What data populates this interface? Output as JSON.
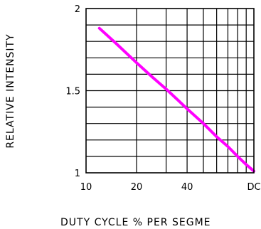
{
  "chart_data": {
    "type": "line",
    "xlabel": "DUTY CYCLE % PER SEGME",
    "ylabel": "RELATIVE INTENSITY",
    "x_scale": "log",
    "x_ticks": [
      {
        "value": 10,
        "label": "10"
      },
      {
        "value": 20,
        "label": "20"
      },
      {
        "value": 40,
        "label": "40"
      },
      {
        "value": 100,
        "label": "DC"
      }
    ],
    "y_ticks": [
      {
        "value": 1,
        "label": "1"
      },
      {
        "value": 1.5,
        "label": "1.5"
      },
      {
        "value": 2,
        "label": "2"
      }
    ],
    "xlim": [
      10,
      100
    ],
    "ylim": [
      1,
      2
    ],
    "grid": true,
    "grid_x_values": [
      20,
      30,
      40,
      50,
      60,
      70,
      80,
      90
    ],
    "grid_y_step": 0.1,
    "series": [
      {
        "color": "#ff00ff",
        "x": [
          12,
          15,
          20,
          25,
          30,
          40,
          50,
          60,
          70,
          80,
          90,
          100
        ],
        "y": [
          1.88,
          1.79,
          1.67,
          1.58,
          1.51,
          1.39,
          1.3,
          1.22,
          1.16,
          1.1,
          1.05,
          1.01
        ]
      }
    ]
  }
}
